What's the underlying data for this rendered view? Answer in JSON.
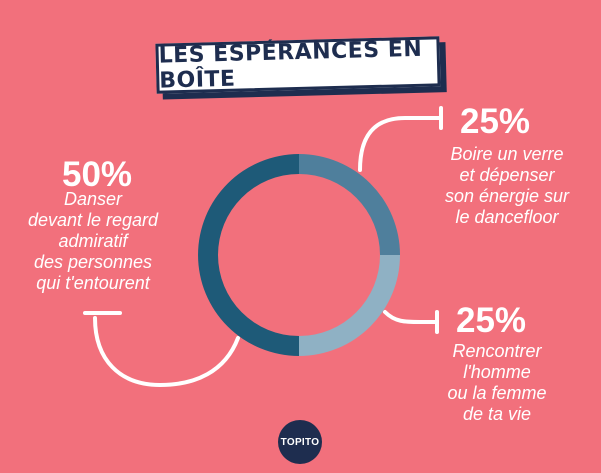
{
  "title": "LES ESPÉRANCES EN BOÎTE",
  "chart_data": {
    "type": "pie",
    "title": "LES ESPÉRANCES EN BOÎTE",
    "slices": [
      {
        "value": 25,
        "percent_label": "25%",
        "label": "Boire un verre\net dépenser\nson énergie sur\nle dancefloor",
        "color": "#4f7f9c"
      },
      {
        "value": 25,
        "percent_label": "25%",
        "label": "Rencontrer\nl'homme\nou la femme\nde ta vie",
        "color": "#8fb1c4"
      },
      {
        "value": 50,
        "percent_label": "50%",
        "label": "Danser\ndevant le regard\nadmiratif\ndes personnes\nqui t'entourent",
        "color": "#1e5a78"
      }
    ]
  },
  "colors": {
    "background": "#f2707c",
    "navy": "#1e2d4f"
  },
  "logo": {
    "text": "TOPITO"
  }
}
